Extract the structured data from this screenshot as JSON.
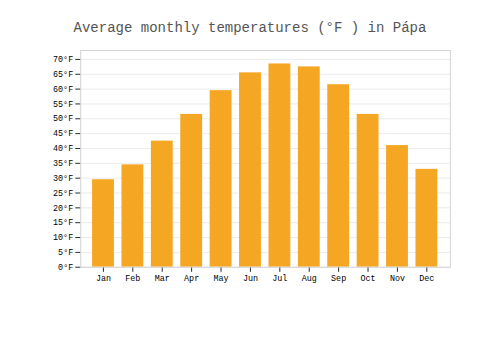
{
  "chart_data": {
    "type": "bar",
    "title": "Average monthly temperatures (°F ) in Pápa",
    "categories": [
      "Jan",
      "Feb",
      "Mar",
      "Apr",
      "May",
      "Jun",
      "Jul",
      "Aug",
      "Sep",
      "Oct",
      "Nov",
      "Dec"
    ],
    "values": [
      29.5,
      34.5,
      42.5,
      51.5,
      59.5,
      65.5,
      68.5,
      67.5,
      61.5,
      51.5,
      41.0,
      33.0
    ],
    "color": "#F5A623",
    "ylim": [
      0,
      73
    ],
    "yticks": [
      {
        "value": 0,
        "label": "0°F"
      },
      {
        "value": 5,
        "label": "5°F"
      },
      {
        "value": 10,
        "label": "10°F"
      },
      {
        "value": 15,
        "label": "15°F"
      },
      {
        "value": 20,
        "label": "20°F"
      },
      {
        "value": 25,
        "label": "25°F"
      },
      {
        "value": 30,
        "label": "30°F"
      },
      {
        "value": 35,
        "label": "35°F"
      },
      {
        "value": 40,
        "label": "40°F"
      },
      {
        "value": 45,
        "label": "45°F"
      },
      {
        "value": 50,
        "label": "50°F"
      },
      {
        "value": 55,
        "label": "55°F"
      },
      {
        "value": 60,
        "label": "60°F"
      },
      {
        "value": 65,
        "label": "65°F"
      },
      {
        "value": 70,
        "label": "70°F"
      }
    ],
    "grid": true
  }
}
